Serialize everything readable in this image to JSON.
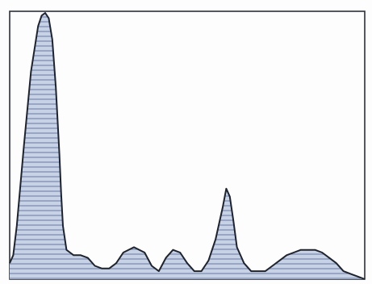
{
  "chart_data": {
    "type": "area",
    "title": "",
    "xlabel": "",
    "ylabel": "",
    "grid": false,
    "legend": "none",
    "x": [
      0,
      0.01,
      0.02,
      0.04,
      0.06,
      0.08,
      0.09,
      0.1,
      0.11,
      0.12,
      0.13,
      0.14,
      0.145,
      0.15,
      0.16,
      0.17,
      0.18,
      0.19,
      0.2,
      0.22,
      0.24,
      0.26,
      0.28,
      0.3,
      0.32,
      0.35,
      0.38,
      0.4,
      0.42,
      0.44,
      0.46,
      0.48,
      0.5,
      0.52,
      0.54,
      0.56,
      0.58,
      0.6,
      0.61,
      0.62,
      0.63,
      0.64,
      0.66,
      0.68,
      0.7,
      0.72,
      0.74,
      0.76,
      0.78,
      0.8,
      0.82,
      0.84,
      0.86,
      0.88,
      0.9,
      0.92,
      0.94,
      0.96,
      0.98,
      1.0
    ],
    "series": [
      {
        "values": [
          0.06,
          0.09,
          0.2,
          0.5,
          0.78,
          0.95,
          0.99,
          1.0,
          0.98,
          0.9,
          0.72,
          0.47,
          0.32,
          0.2,
          0.11,
          0.1,
          0.09,
          0.09,
          0.09,
          0.08,
          0.05,
          0.04,
          0.04,
          0.06,
          0.1,
          0.12,
          0.1,
          0.05,
          0.03,
          0.08,
          0.11,
          0.1,
          0.06,
          0.03,
          0.03,
          0.07,
          0.15,
          0.27,
          0.34,
          0.31,
          0.22,
          0.12,
          0.06,
          0.03,
          0.03,
          0.03,
          0.05,
          0.07,
          0.09,
          0.1,
          0.11,
          0.11,
          0.11,
          0.1,
          0.08,
          0.06,
          0.03,
          0.02,
          0.01,
          0.0
        ]
      }
    ],
    "xlim": [
      0,
      1
    ],
    "ylim": [
      0,
      1
    ],
    "colors": {
      "fill": "#c7d2e7",
      "hatch": "#7f8fb2",
      "line": "#1e2330",
      "frame": "#2c3038",
      "background": "#fdfdfd"
    }
  }
}
